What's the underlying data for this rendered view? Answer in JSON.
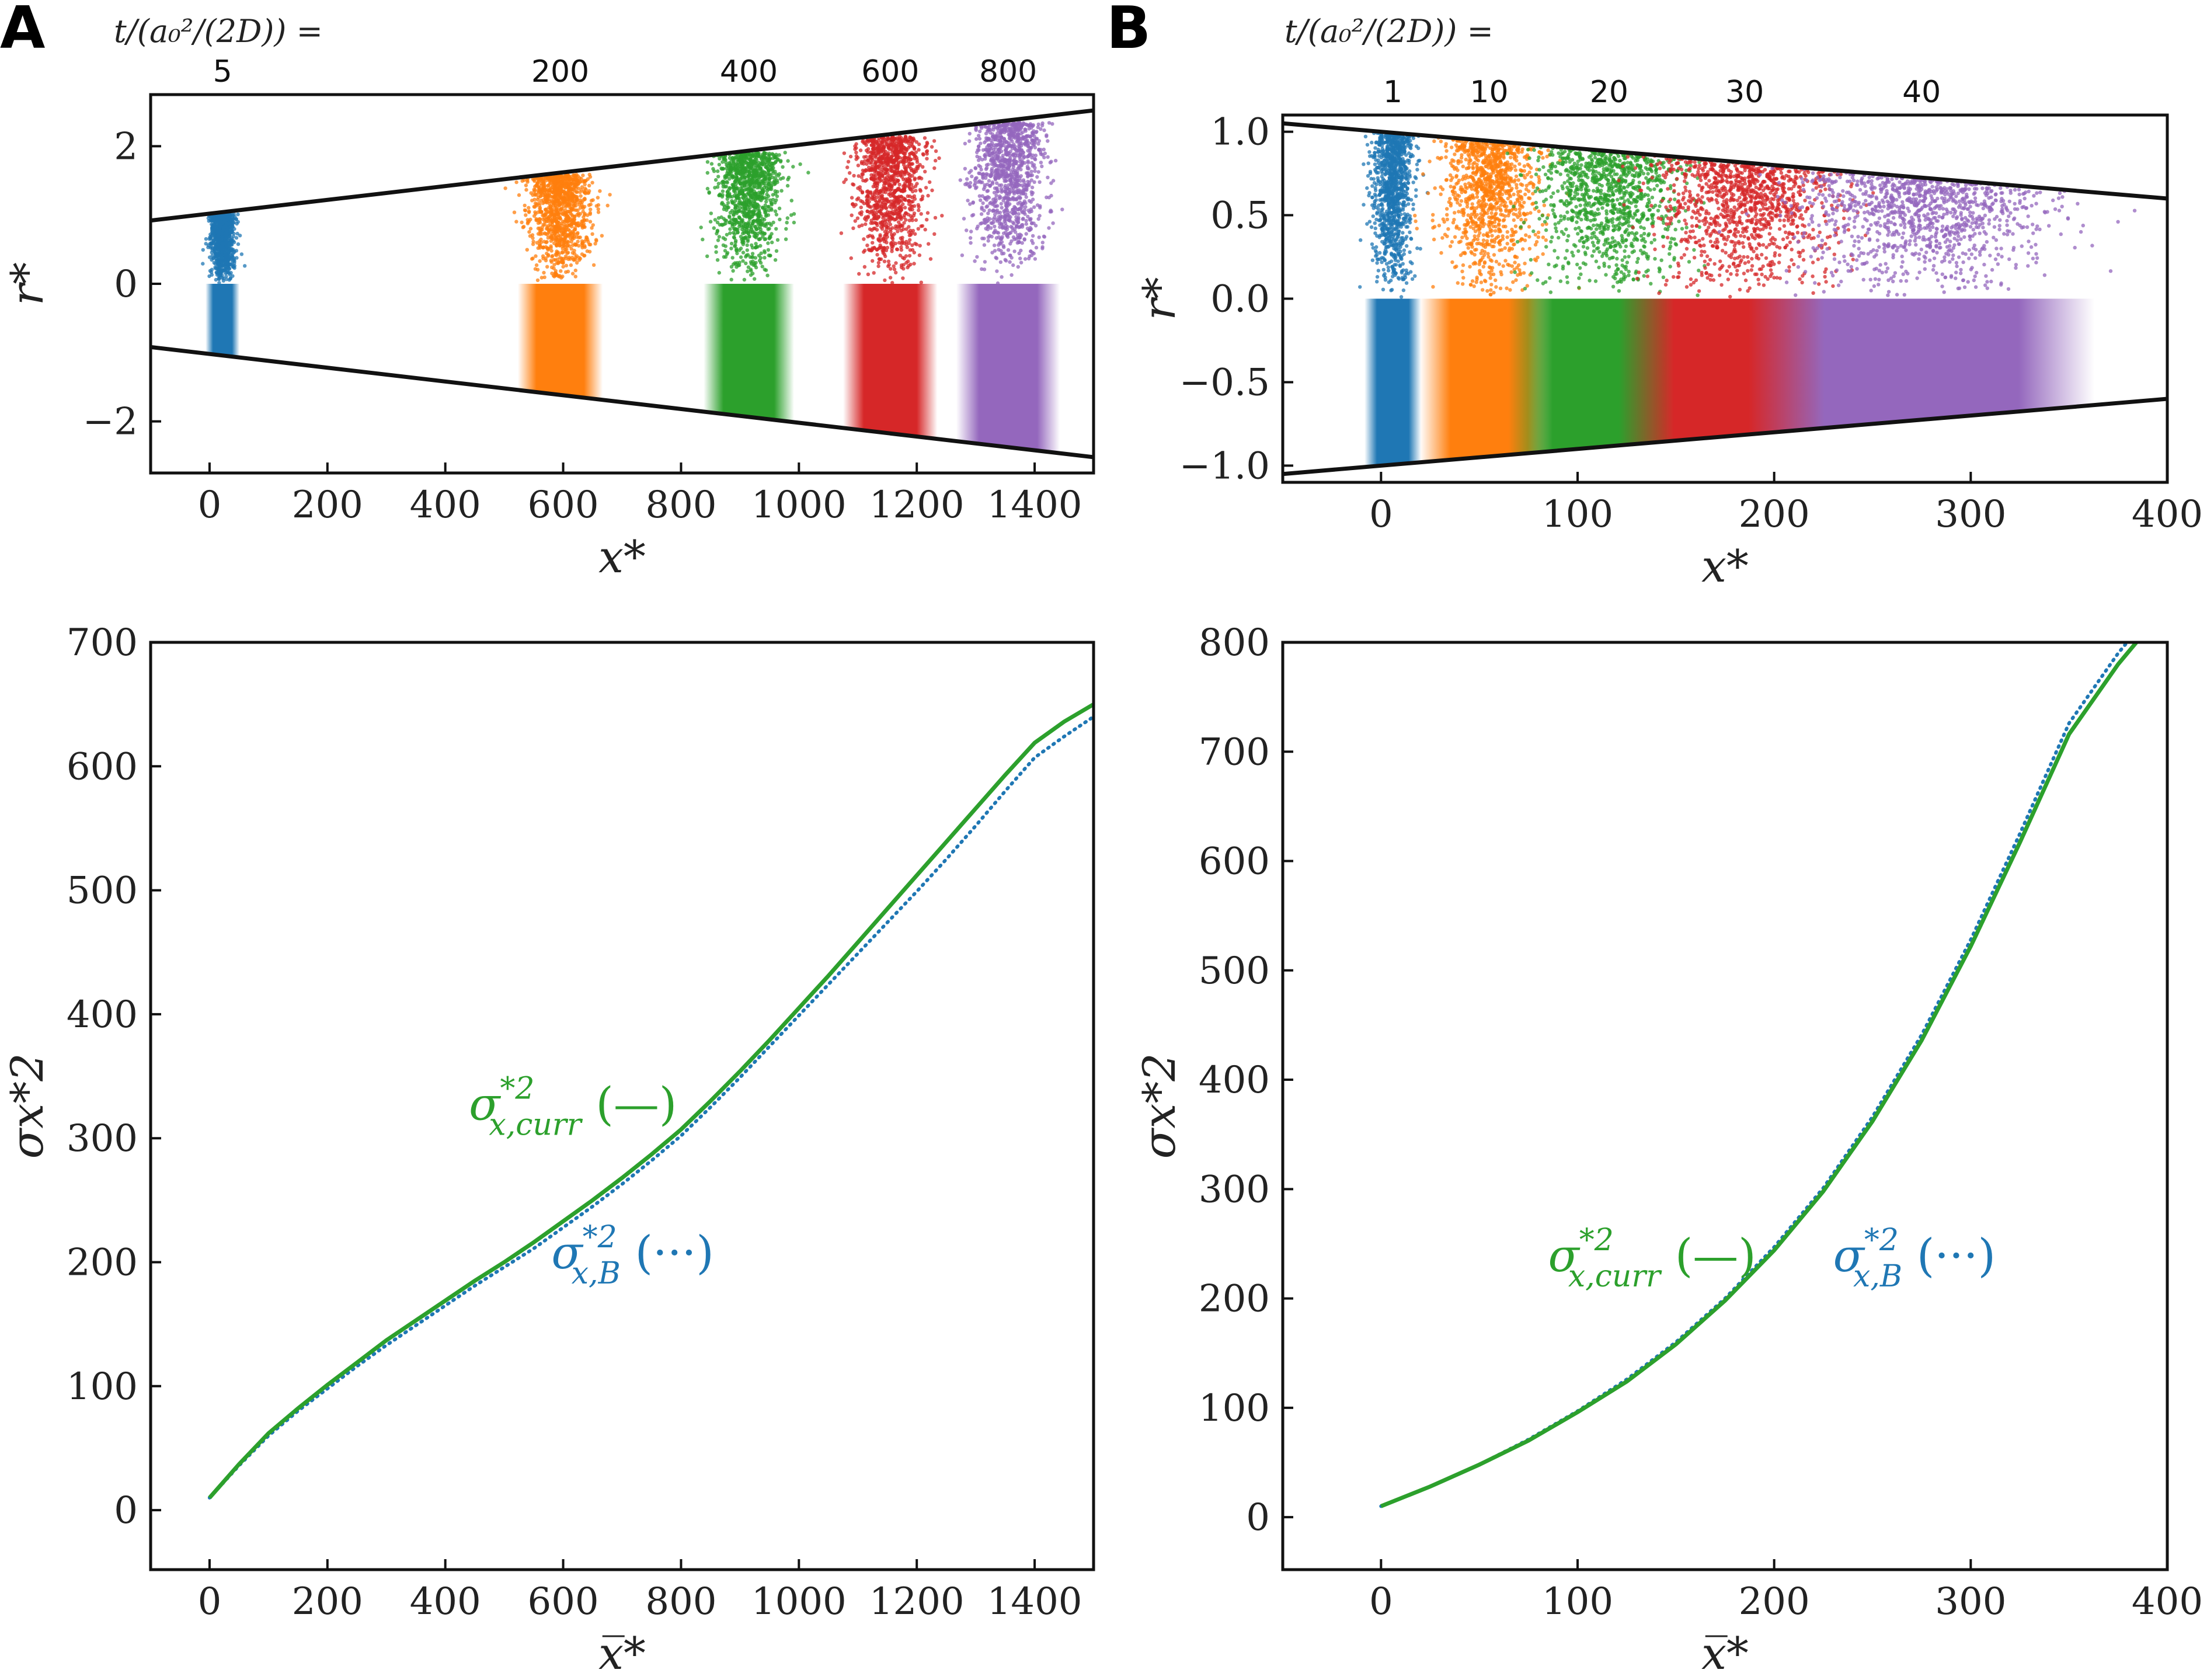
{
  "panel_labels": {
    "a": "A",
    "b": "B"
  },
  "time_header": "t/(a₀²/(2D)) =",
  "colors": {
    "blue": "#1f77b4",
    "orange": "#ff7f0e",
    "green": "#2ca02c",
    "red": "#d62728",
    "purple": "#9467bd",
    "black": "#111111"
  },
  "chart_data": [
    {
      "id": "A-top",
      "type": "scatter",
      "title": "",
      "xlabel": "x*",
      "ylabel": "r*",
      "xlim": [
        -100,
        1500
      ],
      "ylim": [
        -2.75,
        2.75
      ],
      "xticks": [
        0,
        200,
        400,
        600,
        800,
        1000,
        1200,
        1400
      ],
      "yticks": [
        -2,
        0,
        2
      ],
      "ytick_labels": [
        "−2",
        "0",
        "2"
      ],
      "walls": {
        "upper": [
          [
            -100,
            0.92
          ],
          [
            1500,
            2.52
          ]
        ],
        "lower": [
          [
            -100,
            -0.92
          ],
          [
            1500,
            -2.52
          ]
        ]
      },
      "snapshot_times": [
        "5",
        "200",
        "400",
        "600",
        "800"
      ],
      "snapshots": [
        {
          "time": "5",
          "x_center": 22,
          "x_halfwidth": 18,
          "r_max": 1.02,
          "color": "blue"
        },
        {
          "time": "200",
          "x_center": 595,
          "x_halfwidth": 45,
          "r_max": 1.59,
          "color": "orange"
        },
        {
          "time": "400",
          "x_center": 915,
          "x_halfwidth": 48,
          "r_max": 1.91,
          "color": "green"
        },
        {
          "time": "600",
          "x_center": 1155,
          "x_halfwidth": 50,
          "r_max": 2.15,
          "color": "red"
        },
        {
          "time": "800",
          "x_center": 1355,
          "x_halfwidth": 55,
          "r_max": 2.35,
          "color": "purple"
        }
      ]
    },
    {
      "id": "B-top",
      "type": "scatter",
      "title": "",
      "xlabel": "x*",
      "ylabel": "r*",
      "xlim": [
        -50,
        400
      ],
      "ylim": [
        -1.1,
        1.1
      ],
      "xticks": [
        0,
        100,
        200,
        300,
        400
      ],
      "yticks": [
        -1.0,
        -0.5,
        0.0,
        0.5,
        1.0
      ],
      "ytick_labels": [
        "−1.0",
        "−0.5",
        "0.0",
        "0.5",
        "1.0"
      ],
      "walls": {
        "upper": [
          [
            -50,
            1.05
          ],
          [
            400,
            0.6
          ]
        ],
        "lower": [
          [
            -50,
            -1.05
          ],
          [
            400,
            -0.6
          ]
        ]
      },
      "snapshot_times": [
        "1",
        "10",
        "20",
        "30",
        "40"
      ],
      "snapshots": [
        {
          "time": "1",
          "x_center": 6,
          "x_halfwidth": 9,
          "color": "blue"
        },
        {
          "time": "10",
          "x_center": 55,
          "x_halfwidth": 22,
          "color": "orange"
        },
        {
          "time": "20",
          "x_center": 116,
          "x_halfwidth": 32,
          "color": "green"
        },
        {
          "time": "30",
          "x_center": 185,
          "x_halfwidth": 40,
          "color": "red"
        },
        {
          "time": "40",
          "x_center": 275,
          "x_halfwidth": 55,
          "color": "purple"
        }
      ]
    },
    {
      "id": "A-bottom",
      "type": "line",
      "title": "",
      "xlabel": "x̅*",
      "ylabel": "σx*2",
      "xlim": [
        -100,
        1500
      ],
      "ylim": [
        -48,
        700
      ],
      "xticks": [
        0,
        200,
        400,
        600,
        800,
        1000,
        1200,
        1400
      ],
      "yticks": [
        0,
        100,
        200,
        300,
        400,
        500,
        600,
        700
      ],
      "series": [
        {
          "name": "σ*2 x,curr (—)",
          "style": "solid",
          "color": "green",
          "x": [
            0,
            50,
            100,
            150,
            200,
            250,
            300,
            350,
            400,
            450,
            500,
            550,
            600,
            650,
            700,
            750,
            800,
            850,
            900,
            950,
            1000,
            1050,
            1100,
            1150,
            1200,
            1250,
            1300,
            1350,
            1400,
            1450,
            1500
          ],
          "y": [
            10,
            37,
            62,
            82,
            101,
            119,
            137,
            153,
            169,
            185,
            200,
            216,
            233,
            250,
            268,
            287,
            307,
            330,
            354,
            379,
            405,
            431,
            458,
            485,
            512,
            539,
            566,
            593,
            619,
            636,
            650
          ]
        },
        {
          "name": "σ*2 x,B (···)",
          "style": "dotted",
          "color": "blue",
          "x": [
            0,
            50,
            100,
            150,
            200,
            250,
            300,
            350,
            400,
            450,
            500,
            550,
            600,
            650,
            700,
            750,
            800,
            850,
            900,
            950,
            1000,
            1050,
            1100,
            1150,
            1200,
            1250,
            1300,
            1350,
            1400,
            1450,
            1500
          ],
          "y": [
            10,
            36,
            60,
            80,
            98,
            116,
            133,
            149,
            165,
            181,
            196,
            211,
            228,
            245,
            263,
            282,
            302,
            325,
            349,
            374,
            399,
            424,
            449,
            474,
            499,
            525,
            552,
            580,
            607,
            624,
            640
          ]
        }
      ],
      "annotations": [
        {
          "text_main": "σ",
          "text_sup": "*2",
          "text_sub": "x,curr",
          "text_tail": " (—)",
          "color": "green",
          "x": 440,
          "y": 315
        },
        {
          "text_main": "σ",
          "text_sup": "*2",
          "text_sub": "x,B",
          "text_tail": " (···)",
          "color": "blue",
          "x": 580,
          "y": 195
        }
      ]
    },
    {
      "id": "B-bottom",
      "type": "line",
      "title": "",
      "xlabel": "x̅*",
      "ylabel": "σx*2",
      "xlim": [
        -50,
        400
      ],
      "ylim": [
        -48,
        800
      ],
      "xticks": [
        0,
        100,
        200,
        300,
        400
      ],
      "yticks": [
        0,
        100,
        200,
        300,
        400,
        500,
        600,
        700,
        800
      ],
      "series": [
        {
          "name": "σ*2 x,curr (—)",
          "style": "solid",
          "color": "green",
          "x": [
            0,
            25,
            50,
            75,
            100,
            125,
            150,
            175,
            200,
            225,
            250,
            275,
            300,
            325,
            350,
            375,
            388
          ],
          "y": [
            10,
            28,
            48,
            70,
            96,
            124,
            158,
            198,
            244,
            298,
            362,
            436,
            522,
            617,
            716,
            780,
            808
          ]
        },
        {
          "name": "σ*2 x,B (···)",
          "style": "dotted",
          "color": "blue",
          "x": [
            0,
            25,
            50,
            75,
            100,
            125,
            150,
            175,
            200,
            225,
            250,
            275,
            300,
            325,
            350,
            375,
            385
          ],
          "y": [
            10,
            28,
            48,
            71,
            97,
            126,
            160,
            200,
            247,
            301,
            366,
            441,
            528,
            625,
            726,
            790,
            812
          ]
        }
      ],
      "annotations": [
        {
          "text_main": "σ",
          "text_sup": "*2",
          "text_sub": "x,curr",
          "text_tail": " (—)",
          "color": "green",
          "x": 85,
          "y": 225
        },
        {
          "text_main": "σ",
          "text_sup": "*2",
          "text_sub": "x,B",
          "text_tail": " (···)",
          "color": "blue",
          "x": 230,
          "y": 225
        }
      ]
    }
  ]
}
